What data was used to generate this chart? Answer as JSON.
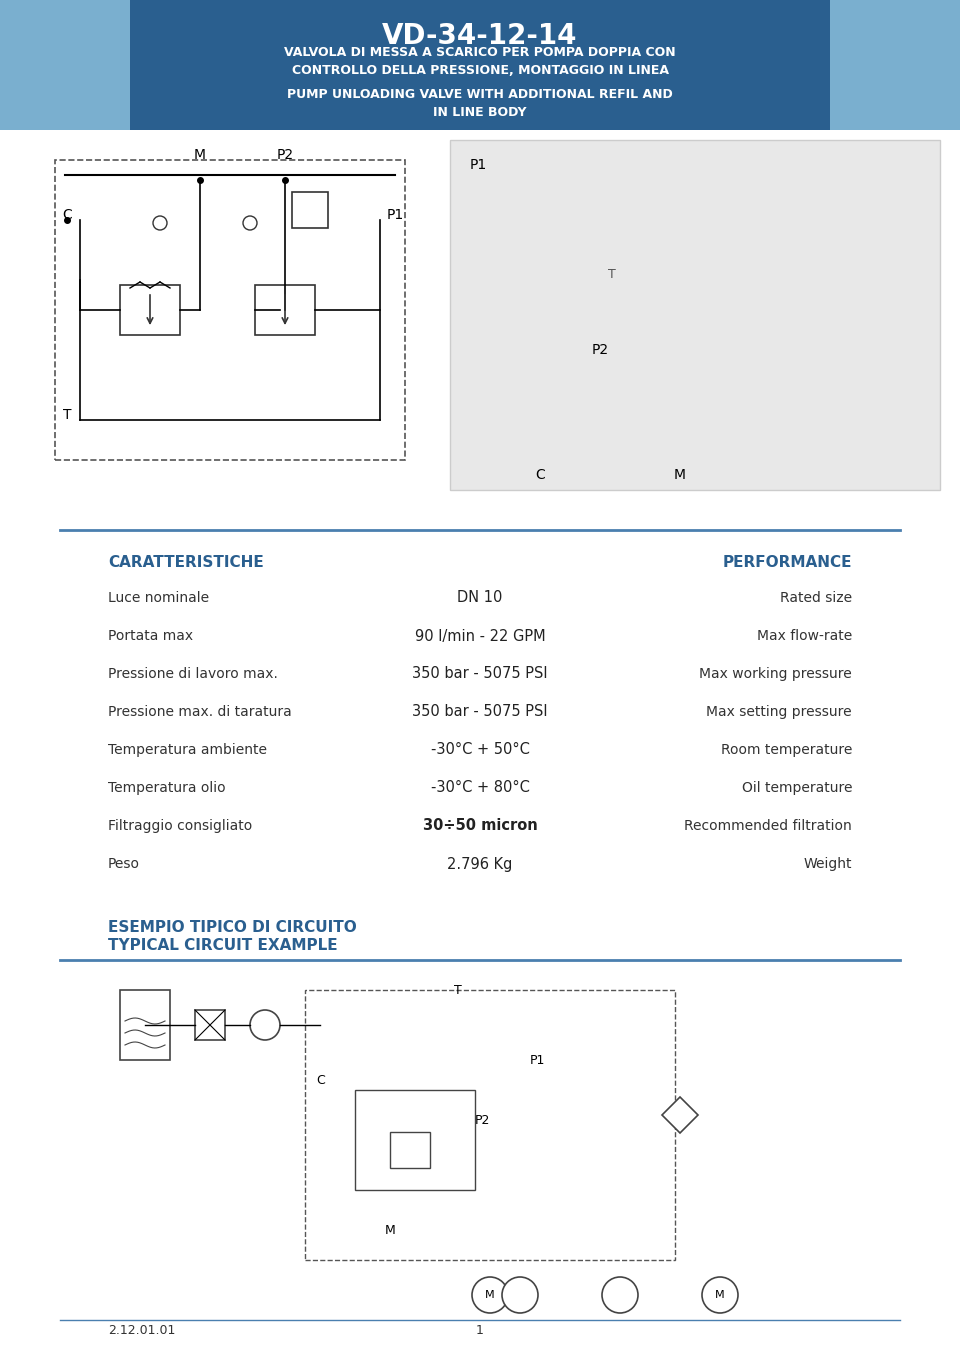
{
  "title": "VD-34-12-14",
  "subtitle_it": "VALVOLA DI MESSA A SCARICO PER POMPA DOPPIA CON\nCONTROLLO DELLA PRESSIONE, MONTAGGIO IN LINEA",
  "subtitle_en": "PUMP UNLOADING VALVE WITH ADDITIONAL REFIL AND\nIN LINE BODY",
  "header_bg_dark": "#2a5f8f",
  "header_bg_light": "#7aafcf",
  "header_text_color": "#ffffff",
  "section_title_color": "#2a5f8f",
  "body_bg": "#ffffff",
  "divider_color": "#4a7faf",
  "caratteristiche_title": "CARATTERISTICHE",
  "performance_title": "PERFORMANCE",
  "rows": [
    [
      "Luce nominale",
      "DN 10",
      "Rated size"
    ],
    [
      "Portata max",
      "90 l/min - 22 GPM",
      "Max flow-rate"
    ],
    [
      "Pressione di lavoro max.",
      "350 bar - 5075 PSI",
      "Max working pressure"
    ],
    [
      "Pressione max. di taratura",
      "350 bar - 5075 PSI",
      "Max setting pressure"
    ],
    [
      "Temperatura ambiente",
      "-30°C + 50°C",
      "Room temperature"
    ],
    [
      "Temperatura olio",
      "-30°C + 80°C",
      "Oil temperature"
    ],
    [
      "Filtraggio consigliato",
      "30÷50 micron",
      "Recommended filtration"
    ],
    [
      "Peso",
      "2.796 Kg",
      "Weight"
    ]
  ],
  "bold_rows": [
    6
  ],
  "esempio_title_it": "ESEMPIO TIPICO DI CIRCUITO",
  "esempio_title_en": "TYPICAL CIRCUIT EXAMPLE",
  "footer_left": "2.12.01.01",
  "footer_center": "1",
  "footer_line_color": "#4a7faf"
}
